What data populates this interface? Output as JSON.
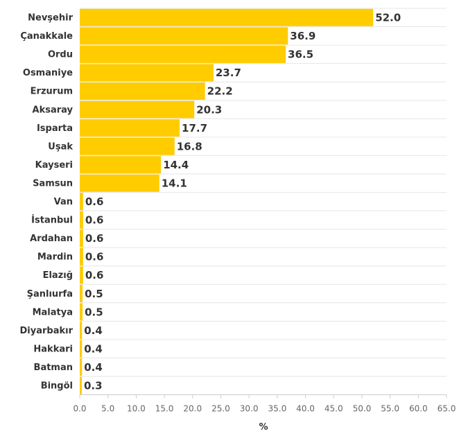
{
  "chart_data": {
    "type": "bar",
    "orientation": "horizontal",
    "categories": [
      "Nevşehir",
      "Çanakkale",
      "Ordu",
      "Osmaniye",
      "Erzurum",
      "Aksaray",
      "Isparta",
      "Uşak",
      "Kayseri",
      "Samsun",
      "Van",
      "İstanbul",
      "Ardahan",
      "Mardin",
      "Elazığ",
      "Şanlıurfa",
      "Malatya",
      "Diyarbakır",
      "Hakkari",
      "Batman",
      "Bingöl"
    ],
    "values": [
      52.0,
      36.9,
      36.5,
      23.7,
      22.2,
      20.3,
      17.7,
      16.8,
      14.4,
      14.1,
      0.6,
      0.6,
      0.6,
      0.6,
      0.6,
      0.5,
      0.5,
      0.4,
      0.4,
      0.4,
      0.3
    ],
    "value_labels": [
      "52.0",
      "36.9",
      "36.5",
      "23.7",
      "22.2",
      "20.3",
      "17.7",
      "16.8",
      "14.4",
      "14.1",
      "0.6",
      "0.6",
      "0.6",
      "0.6",
      "0.6",
      "0.5",
      "0.5",
      "0.4",
      "0.4",
      "0.4",
      "0.3"
    ],
    "xlabel": "%",
    "ylabel": "",
    "xlim": [
      0,
      65
    ],
    "x_ticks": [
      "0.0",
      "5.0",
      "10.0",
      "15.0",
      "20.0",
      "25.0",
      "30.0",
      "35.0",
      "40.0",
      "45.0",
      "50.0",
      "55.0",
      "60.0",
      "65.0"
    ],
    "grid": true,
    "bar_color": "#ffcc00",
    "grid_color": "#e6e6e6",
    "text_color": "#333333"
  }
}
